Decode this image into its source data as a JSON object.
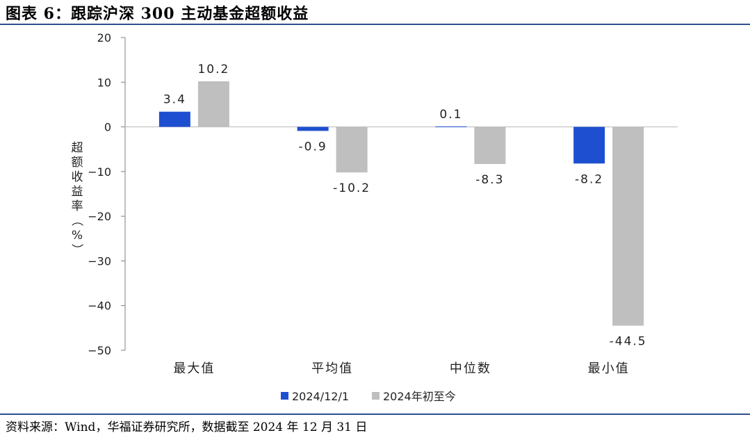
{
  "header": {
    "title": "图表 6：跟踪沪深 300 主动基金超额收益"
  },
  "footer": {
    "source": "资料来源：Wind，华福证券研究所，数据截至 2024 年 12 月 31 日"
  },
  "colors": {
    "series1": "#1f4fd1",
    "series2": "#bfbfbf",
    "rule": "#2f4f8f"
  },
  "chart_data": {
    "type": "bar",
    "title": "",
    "xlabel": "",
    "ylabel": "超额收益率（%）",
    "ylim": [
      -50,
      20
    ],
    "yticks": [
      20,
      10,
      0,
      -10,
      -20,
      -30,
      -40,
      -50
    ],
    "categories": [
      "最大值",
      "平均值",
      "中位数",
      "最小值"
    ],
    "series": [
      {
        "name": "2024/12/1",
        "values": [
          3.4,
          -0.9,
          0.1,
          -8.2
        ],
        "labels": [
          "3.4",
          "-0.9",
          "0.1",
          "-8.2"
        ]
      },
      {
        "name": "2024年初至今",
        "values": [
          10.2,
          -10.2,
          -8.3,
          -44.5
        ],
        "labels": [
          "10.2",
          "-10.2",
          "-8.3",
          "-44.5"
        ]
      }
    ],
    "legend": "bottom",
    "grid": false
  }
}
